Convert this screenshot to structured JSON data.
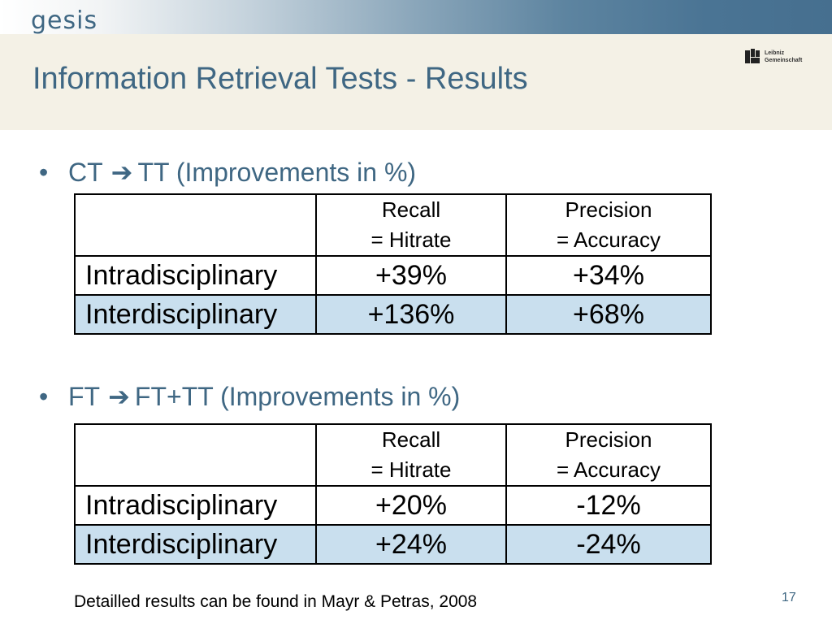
{
  "header": {
    "brand": "gesis",
    "title": "Information Retrieval Tests - Results",
    "partner_logo": {
      "line1": "Leibniz",
      "line2": "Gemeinschaft"
    }
  },
  "sections": [
    {
      "bullet": "•",
      "from": "CT",
      "arrow": "➔",
      "to": "TT",
      "note": "(Improvements in %)",
      "table": {
        "headers": [
          {
            "line1": "",
            "line2": ""
          },
          {
            "line1": "Recall",
            "line2": "= Hitrate"
          },
          {
            "line1": "Precision",
            "line2": "= Accuracy"
          }
        ],
        "rows": [
          {
            "label": "Intradisciplinary",
            "recall": "+39%",
            "precision": "+34%"
          },
          {
            "label": "Interdisciplinary",
            "recall": "+136%",
            "precision": "+68%"
          }
        ]
      }
    },
    {
      "bullet": "•",
      "from": "FT",
      "arrow": "➔",
      "to": "FT+TT",
      "note": "(Improvements in %)",
      "table": {
        "headers": [
          {
            "line1": "",
            "line2": ""
          },
          {
            "line1": "Recall",
            "line2": "= Hitrate"
          },
          {
            "line1": "Precision",
            "line2": "= Accuracy"
          }
        ],
        "rows": [
          {
            "label": "Intradisciplinary",
            "recall": "+20%",
            "precision": "-12%"
          },
          {
            "label": "Interdisciplinary",
            "recall": "+24%",
            "precision": "-24%"
          }
        ]
      }
    }
  ],
  "footnote": "Detailled results can be found in Mayr & Petras, 2008",
  "page_number": "17",
  "colors": {
    "accent": "#3f6783",
    "header_background": "#f4f1e6",
    "row_highlight": "#c9dfee"
  }
}
